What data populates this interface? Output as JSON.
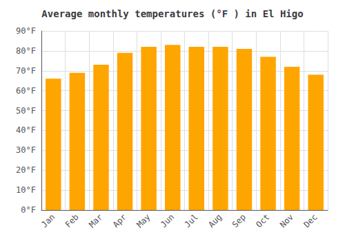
{
  "chart_data": {
    "type": "bar",
    "title": "Average monthly temperatures (°F ) in El Higo",
    "categories": [
      "Jan",
      "Feb",
      "Mar",
      "Apr",
      "May",
      "Jun",
      "Jul",
      "Aug",
      "Sep",
      "Oct",
      "Nov",
      "Dec"
    ],
    "values": [
      66,
      69,
      73,
      79,
      82,
      83,
      82,
      82,
      81,
      77,
      72,
      68
    ],
    "color": "#FFA500",
    "ylim": [
      0,
      90
    ],
    "yticks": [
      {
        "value": 0,
        "label": "0°F"
      },
      {
        "value": 10,
        "label": "10°F"
      },
      {
        "value": 20,
        "label": "20°F"
      },
      {
        "value": 30,
        "label": "30°F"
      },
      {
        "value": 40,
        "label": "40°F"
      },
      {
        "value": 50,
        "label": "50°F"
      },
      {
        "value": 60,
        "label": "60°F"
      },
      {
        "value": 70,
        "label": "70°F"
      },
      {
        "value": 80,
        "label": "80°F"
      },
      {
        "value": 90,
        "label": "90°F"
      }
    ],
    "grid": true
  }
}
